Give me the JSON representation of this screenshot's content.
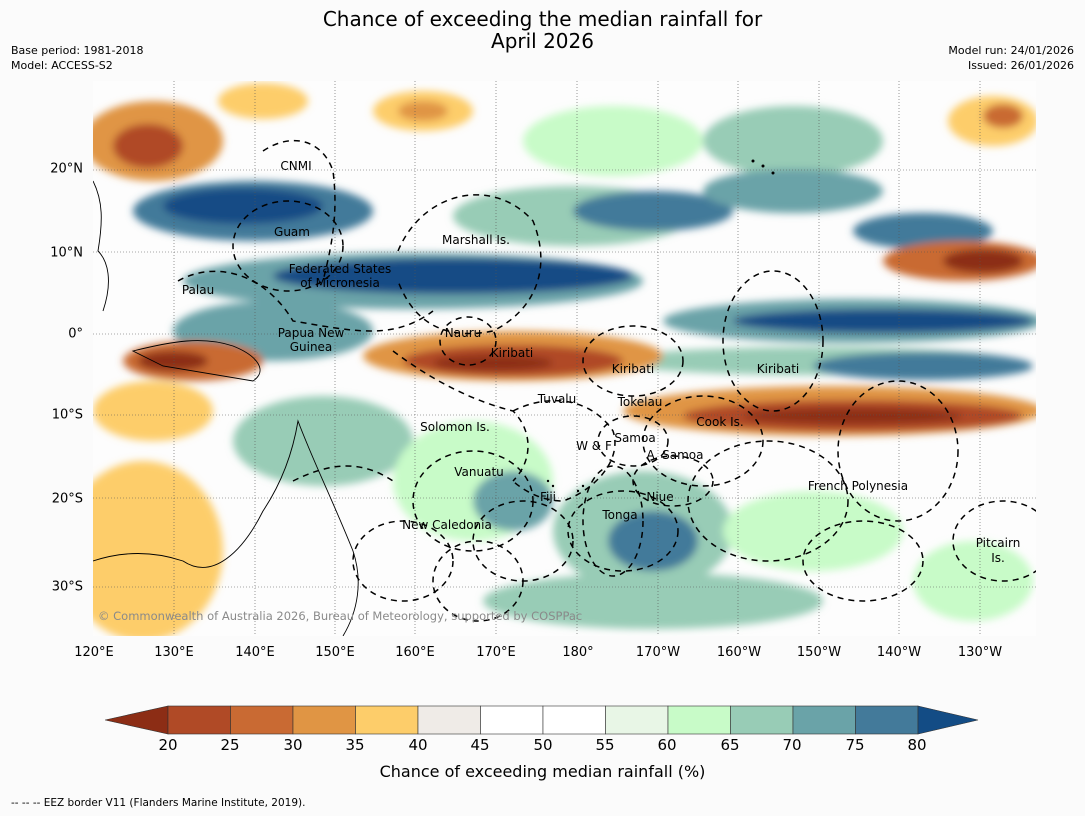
{
  "title_line1": "Chance of exceeding the median rainfall for",
  "title_line2": "April 2026",
  "base_period": "Base period: 1981-2018",
  "model": "Model: ACCESS-S2",
  "model_run": "Model run: 24/01/2026",
  "issued": "Issued: 26/01/2026",
  "lat_labels": [
    "20°N",
    "10°N",
    "0°",
    "10°S",
    "20°S",
    "30°S"
  ],
  "lon_labels": [
    "120°E",
    "130°E",
    "140°E",
    "150°E",
    "160°E",
    "170°E",
    "180°",
    "170°W",
    "160°W",
    "150°W",
    "140°W",
    "130°W"
  ],
  "regions": {
    "cnmi": "CNMI",
    "guam": "Guam",
    "marshall": "Marshall Is.",
    "fsm1": "Federated States",
    "fsm2": "of Micronesia",
    "palau": "Palau",
    "png1": "Papua New",
    "png2": "Guinea",
    "nauru": "Nauru",
    "kiribati_w": "Kiribati",
    "kiribati_c": "Kiribati",
    "kiribati_e": "Kiribati",
    "tuvalu": "Tuvalu",
    "tokelau": "Tokelau",
    "cook": "Cook Is.",
    "solomon": "Solomon Is.",
    "wf": "W & F",
    "samoa": "Samoa",
    "asamoa": "A. Samoa",
    "vanuatu": "Vanuatu",
    "fiji": "Fiji",
    "niue": "Niue",
    "tonga": "Tonga",
    "french_poly": "French Polynesia",
    "newcal": "New Caledonia",
    "pitcairn1": "Pitcairn",
    "pitcairn2": "Is."
  },
  "copyright": "© Commonwealth of Australia 2026, Bureau of Meteorology, supported by COSPPac",
  "colorbar": {
    "title": "Chance of exceeding median rainfall (%)",
    "ticks": [
      "20",
      "25",
      "30",
      "35",
      "40",
      "45",
      "50",
      "55",
      "60",
      "65",
      "70",
      "75",
      "80"
    ],
    "colors": [
      "#8c2d15",
      "#b04a26",
      "#c96a33",
      "#e09544",
      "#fdcd6a",
      "#efebe7",
      "#ffffff",
      "#ffffff",
      "#e8f6e6",
      "#c8fbc8",
      "#98ccb6",
      "#6aa3a8",
      "#437a9a",
      "#134c85"
    ]
  },
  "footnote": "--  --  -- EEZ border V11 (Flanders Marine Institute, 2019).",
  "chart_data": {
    "type": "heatmap",
    "title": "Chance of exceeding the median rainfall for April 2026",
    "x_range": [
      "120°E",
      "125°W"
    ],
    "y_range": [
      "35°S",
      "30°N"
    ],
    "xlabel": "",
    "ylabel": "",
    "units": "%",
    "color_scale_min": 20,
    "color_scale_max": 80,
    "grid": true,
    "legend_placement": "bottom",
    "bands": [
      {
        "region": "north of equator around 10-15°N, 130°E-165°E and 170°W-130°W",
        "approx_value": "75-80+"
      },
      {
        "region": "equatorial west around 0-5°S, 160°E-180°",
        "approx_value": "20-35"
      },
      {
        "region": "southern band around 8-12°S, 170°W-125°W",
        "approx_value": "20-30"
      },
      {
        "region": "south-west Pacific 15-30°S, 150°E-170°W",
        "approx_value": "55-75"
      },
      {
        "region": "north-east of Australia 20-35°S, 120°E-145°E",
        "approx_value": "30-45"
      }
    ]
  }
}
